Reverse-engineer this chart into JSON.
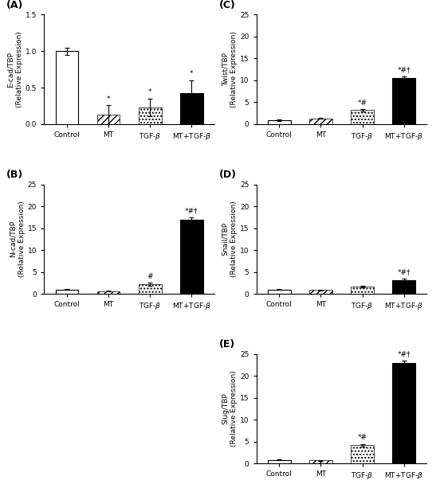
{
  "panels": [
    {
      "label": "A",
      "ylabel": "E-cad/TBP\n(Relative Expression)",
      "ylim": [
        0,
        1.5
      ],
      "yticks": [
        0.0,
        0.5,
        1.0,
        1.5
      ],
      "ytick_labels": [
        "0.0",
        "0.5",
        "1.0",
        "1.5"
      ],
      "categories": [
        "Control",
        "MT",
        "TGF-β",
        "MT+TGF-β"
      ],
      "values": [
        1.0,
        0.13,
        0.23,
        0.42
      ],
      "errors": [
        0.05,
        0.13,
        0.12,
        0.18
      ],
      "patterns": [
        "white",
        "hatch_diag",
        "hatch_dot",
        "black"
      ],
      "annotations": [
        "",
        "*",
        "*",
        "*"
      ]
    },
    {
      "label": "B",
      "ylabel": "N-cad/TBP\n(Relative Expression)",
      "ylim": [
        0,
        25
      ],
      "yticks": [
        0,
        5,
        10,
        15,
        20,
        25
      ],
      "ytick_labels": [
        "0",
        "5",
        "10",
        "15",
        "20",
        "25"
      ],
      "categories": [
        "Control",
        "MT",
        "TGF-β",
        "MT+TGF-β"
      ],
      "values": [
        1.0,
        0.65,
        2.2,
        17.0
      ],
      "errors": [
        0.12,
        0.08,
        0.3,
        0.55
      ],
      "patterns": [
        "white",
        "hatch_diag",
        "hatch_dot",
        "black"
      ],
      "annotations": [
        "",
        "",
        "#",
        "*#†"
      ]
    },
    {
      "label": "C",
      "ylabel": "Twist/TBP\n(Relative Expression)",
      "ylim": [
        0,
        25
      ],
      "yticks": [
        0,
        5,
        10,
        15,
        20,
        25
      ],
      "ytick_labels": [
        "0",
        "5",
        "10",
        "15",
        "20",
        "25"
      ],
      "categories": [
        "Control",
        "MT",
        "TGF-β",
        "MT+TGF-β"
      ],
      "values": [
        0.9,
        1.3,
        3.2,
        10.6
      ],
      "errors": [
        0.1,
        0.12,
        0.25,
        0.3
      ],
      "patterns": [
        "white",
        "hatch_diag",
        "hatch_dot",
        "black"
      ],
      "annotations": [
        "",
        "",
        "*#",
        "*#†"
      ]
    },
    {
      "label": "D",
      "ylabel": "Snail/TBP\n(Relative Expression)",
      "ylim": [
        0,
        25
      ],
      "yticks": [
        0,
        5,
        10,
        15,
        20,
        25
      ],
      "ytick_labels": [
        "0",
        "5",
        "10",
        "15",
        "20",
        "25"
      ],
      "categories": [
        "Control",
        "MT",
        "TGF-β",
        "MT+TGF-β"
      ],
      "values": [
        1.0,
        0.9,
        1.6,
        3.2
      ],
      "errors": [
        0.12,
        0.1,
        0.18,
        0.35
      ],
      "patterns": [
        "white",
        "hatch_diag",
        "hatch_dot",
        "black"
      ],
      "annotations": [
        "",
        "",
        "",
        "*#†"
      ]
    },
    {
      "label": "E",
      "ylabel": "Slug/TBP\n(Relative Expression)",
      "ylim": [
        0,
        25
      ],
      "yticks": [
        0,
        5,
        10,
        15,
        20,
        25
      ],
      "ytick_labels": [
        "0",
        "5",
        "10",
        "15",
        "20",
        "25"
      ],
      "categories": [
        "Control",
        "MT",
        "TGF-β",
        "MT+TGF-β"
      ],
      "values": [
        0.85,
        0.75,
        4.2,
        23.0
      ],
      "errors": [
        0.12,
        0.08,
        0.3,
        0.6
      ],
      "patterns": [
        "white",
        "hatch_diag",
        "hatch_dot",
        "black"
      ],
      "annotations": [
        "",
        "",
        "*#",
        "*#†"
      ]
    }
  ],
  "background_color": "#ffffff",
  "bar_width": 0.55,
  "fontsize_ylabel": 6.5,
  "fontsize_tick": 6.5,
  "fontsize_panel_label": 9,
  "fontsize_annot": 6.5
}
